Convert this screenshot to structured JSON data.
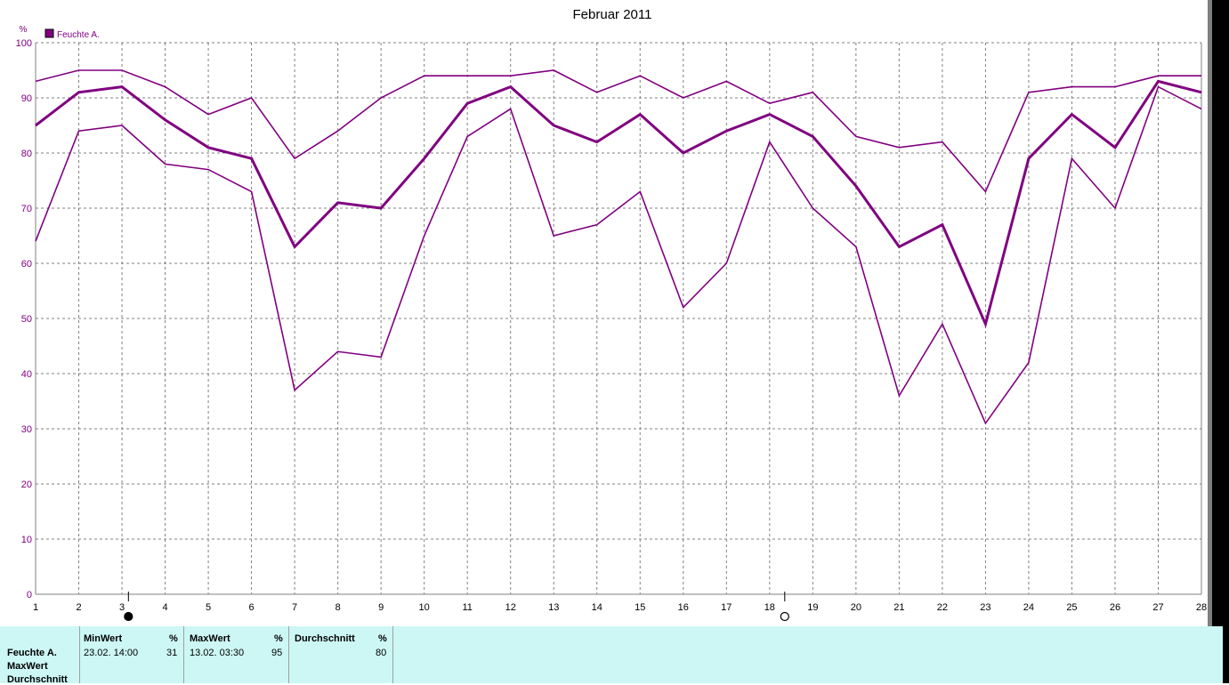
{
  "chart_data": {
    "type": "line",
    "title": "Februar 2011",
    "ylabel": "%",
    "ylim": [
      0,
      100
    ],
    "yticks": [
      "0",
      "10",
      "20",
      "30",
      "40",
      "50",
      "60",
      "70",
      "80",
      "90",
      "100"
    ],
    "x": [
      1,
      2,
      3,
      4,
      5,
      6,
      7,
      8,
      9,
      10,
      11,
      12,
      13,
      14,
      15,
      16,
      17,
      18,
      19,
      20,
      21,
      22,
      23,
      24,
      25,
      26,
      27,
      28
    ],
    "xticks": [
      "1",
      "2",
      "3",
      "4",
      "5",
      "6",
      "7",
      "8",
      "9",
      "10",
      "11",
      "12",
      "13",
      "14",
      "15",
      "16",
      "17",
      "18",
      "19",
      "20",
      "21",
      "22",
      "23",
      "24",
      "25",
      "26",
      "27",
      "28"
    ],
    "legend": {
      "label": "Feuchte A.",
      "position": "top-left"
    },
    "grid": true,
    "color": "#800080",
    "series": [
      {
        "values": [
          93,
          95,
          95,
          92,
          87,
          90,
          79,
          84,
          90,
          94,
          94,
          94,
          95,
          91,
          94,
          90,
          93,
          89,
          91,
          83,
          81,
          82,
          73,
          91,
          92,
          92,
          94,
          94
        ]
      },
      {
        "values": [
          85,
          91,
          92,
          86,
          81,
          79,
          63,
          71,
          70,
          79,
          89,
          92,
          85,
          82,
          87,
          80,
          84,
          87,
          83,
          74,
          63,
          67,
          49,
          79,
          87,
          81,
          93,
          91
        ]
      },
      {
        "values": [
          64,
          84,
          85,
          78,
          77,
          73,
          37,
          44,
          43,
          65,
          83,
          88,
          65,
          67,
          73,
          52,
          60,
          82,
          70,
          63,
          36,
          49,
          31,
          42,
          79,
          70,
          92,
          88
        ]
      }
    ],
    "moon_markers": [
      {
        "x": 3.15,
        "phase": "new-moon"
      },
      {
        "x": 18.35,
        "phase": "full-moon"
      }
    ]
  },
  "stats_table": {
    "row_labels": [
      "Feuchte A.",
      "MaxWert",
      "Durchschnitt"
    ],
    "min": {
      "header": "MinWert",
      "unit": "%",
      "date": "23.02.  14:00",
      "value": "31"
    },
    "max": {
      "header": "MaxWert",
      "unit": "%",
      "date": "13.02.  03:30",
      "value": "95"
    },
    "avg": {
      "header": "Durchschnitt",
      "unit": "%",
      "value": "80"
    }
  }
}
